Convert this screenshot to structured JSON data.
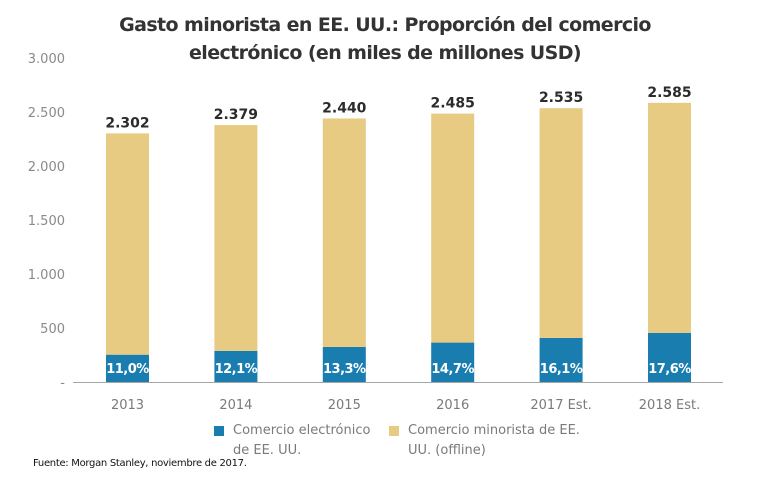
{
  "chart_data": {
    "type": "bar",
    "stacked": true,
    "title_lines": [
      "Gasto minorista en EE. UU.: Proporción del comercio",
      "electrónico (en miles de millones USD)"
    ],
    "categories": [
      "2013",
      "2014",
      "2015",
      "2016",
      "2017 Est.",
      "2018 Est."
    ],
    "totals": [
      2302,
      2379,
      2440,
      2485,
      2535,
      2585
    ],
    "total_labels": [
      "2.302",
      "2.379",
      "2.440",
      "2.485",
      "2.535",
      "2.585"
    ],
    "ecommerce_share_pct": [
      11.0,
      12.1,
      13.3,
      14.7,
      16.1,
      17.6
    ],
    "share_labels": [
      "11,0%",
      "12,1%",
      "13,3%",
      "14,7%",
      "16,1%",
      "17,6%"
    ],
    "series": [
      {
        "name": "Comercio electrónico de EE. UU.",
        "legend_lines": [
          "Comercio electrónico",
          "de EE. UU."
        ],
        "color": "#1a7db0",
        "values": [
          253,
          288,
          325,
          365,
          408,
          455
        ]
      },
      {
        "name": "Comercio minorista de EE. UU. (offline)",
        "legend_lines": [
          "Comercio minorista de EE.",
          "UU. (offline)"
        ],
        "color": "#e8cb82",
        "values": [
          2049,
          2091,
          2115,
          2120,
          2127,
          2130
        ]
      }
    ],
    "ylim": [
      0,
      3000
    ],
    "yticks": [
      0,
      500,
      1000,
      1500,
      2000,
      2500,
      3000
    ],
    "ytick_labels": [
      "-",
      "500",
      "1.000",
      "1.500",
      "2.000",
      "2.500",
      "3.000"
    ],
    "xlabel": "",
    "ylabel": "",
    "grid": false,
    "legend_position": "bottom"
  },
  "source": "Fuente: Morgan Stanley, noviembre de 2017."
}
